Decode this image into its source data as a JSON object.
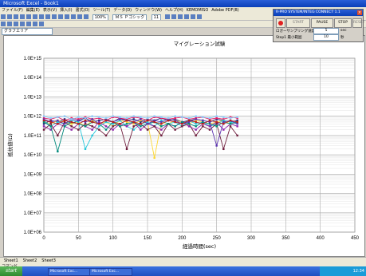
{
  "window": {
    "title": "Microsoft Excel - Book1"
  },
  "menu": [
    "ファイル(F)",
    "編集(E)",
    "表示(V)",
    "挿入(I)",
    "書式(O)",
    "ツール(T)",
    "データ(D)",
    "ウィンドウ(W)",
    "ヘルプ(H)",
    "KEMOMISO",
    "Adobe PDF(B)"
  ],
  "toolbar": {
    "zoom": "100%",
    "font": "ＭＳ Ｐゴシック",
    "font_size": "11"
  },
  "namebox": "グラフエリア",
  "control_panel": {
    "title": "R-PRO SYSTEM/INTEG CONNECT 1.1",
    "close_label": "×",
    "start_label": "START",
    "pause_label": "PAUSE",
    "stop_label": "STOP",
    "fn_label": "RESET",
    "sampling_label": "ロガーサンプリング速度",
    "sampling_value": "5",
    "sampling_unit": "sec",
    "step_label": "Step1 最小範囲",
    "step_value": "10",
    "step_unit": "秒"
  },
  "sheet_tabs": [
    "Sheet1",
    "Sheet2",
    "Sheet3"
  ],
  "status": "コマンド",
  "taskbar": {
    "start": "start",
    "tasks": [
      "Microsoft Exc...",
      "Microsoft Exc..."
    ],
    "clock": "12:34"
  },
  "chart_data": {
    "type": "line",
    "title": "マイグレーション試験",
    "xlabel": "経過時間(sec)",
    "ylabel": "抵抗値(Ω)",
    "xlim": [
      0,
      450
    ],
    "x_ticks": [
      0,
      50,
      100,
      150,
      200,
      250,
      300,
      350,
      400,
      450
    ],
    "ylim_exponent": [
      6,
      15
    ],
    "y_scale": "log",
    "y_ticks": [
      "1.0E+06",
      "1.0E+07",
      "1.0E+08",
      "1.0E+09",
      "1.0E+10",
      "1.0E+11",
      "1.0E+12",
      "1.0E+13",
      "1.0E+14",
      "1.0E+15"
    ],
    "grid": true,
    "x": [
      0,
      10,
      20,
      30,
      40,
      50,
      60,
      70,
      80,
      90,
      100,
      110,
      120,
      130,
      140,
      150,
      160,
      170,
      180,
      190,
      200,
      210,
      220,
      230,
      240,
      250,
      260,
      270,
      280
    ],
    "series": [
      {
        "color": "#1a237e",
        "values": [
          400000000000.0,
          600000000000.0,
          500000000000.0,
          700000000000.0,
          400000000000.0,
          600000000000.0,
          800000000000.0,
          500000000000.0,
          600000000000.0,
          700000000000.0,
          500000000000.0,
          800000000000.0,
          600000000000.0,
          700000000000.0,
          500000000000.0,
          700000000000.0,
          600000000000.0,
          800000000000.0,
          600000000000.0,
          700000000000.0,
          500000000000.0,
          600000000000.0,
          700000000000.0,
          600000000000.0,
          500000000000.0,
          700000000000.0,
          600000000000.0,
          500000000000.0,
          600000000000.0
        ]
      },
      {
        "color": "#e91e63",
        "values": [
          800000000000.0,
          700000000000.0,
          900000000000.0,
          600000000000.0,
          800000000000.0,
          700000000000.0,
          900000000000.0,
          700000000000.0,
          800000000000.0,
          600000000000.0,
          900000000000.0,
          800000000000.0,
          700000000000.0,
          900000000000.0,
          800000000000.0,
          600000000000.0,
          900000000000.0,
          800000000000.0,
          700000000000.0,
          800000000000.0,
          900000000000.0,
          700000000000.0,
          800000000000.0,
          900000000000.0,
          700000000000.0,
          800000000000.0,
          700000000000.0,
          900000000000.0,
          800000000000.0
        ]
      },
      {
        "color": "#fdd835",
        "values": [
          500000000000.0,
          400000000000.0,
          600000000000.0,
          500000000000.0,
          400000000000.0,
          500000000000.0,
          300000000000.0,
          600000000000.0,
          400000000000.0,
          500000000000.0,
          300000000000.0,
          600000000000.0,
          500000000000.0,
          400000000000.0,
          600000000000.0,
          500000000000.0,
          7000000000.0,
          500000000000.0,
          400000000000.0,
          600000000000.0,
          500000000000.0,
          400000000000.0,
          600000000000.0,
          500000000000.0,
          400000000000.0,
          500000000000.0,
          600000000000.0,
          400000000000.0,
          500000000000.0
        ]
      },
      {
        "color": "#26c6da",
        "values": [
          600000000000.0,
          300000000000.0,
          500000000000.0,
          400000000000.0,
          600000000000.0,
          500000000000.0,
          20000000000.0,
          100000000000.0,
          300000000000.0,
          500000000000.0,
          400000000000.0,
          600000000000.0,
          300000000000.0,
          200000000000.0,
          400000000000.0,
          500000000000.0,
          300000000000.0,
          600000000000.0,
          400000000000.0,
          500000000000.0,
          300000000000.0,
          600000000000.0,
          400000000000.0,
          500000000000.0,
          300000000000.0,
          400000000000.0,
          600000000000.0,
          500000000000.0,
          400000000000.0
        ]
      },
      {
        "color": "#8e24aa",
        "values": [
          300000000000.0,
          200000000000.0,
          400000000000.0,
          300000000000.0,
          200000000000.0,
          400000000000.0,
          300000000000.0,
          200000000000.0,
          500000000000.0,
          300000000000.0,
          200000000000.0,
          400000000000.0,
          300000000000.0,
          500000000000.0,
          200000000000.0,
          400000000000.0,
          300000000000.0,
          200000000000.0,
          400000000000.0,
          300000000000.0,
          500000000000.0,
          300000000000.0,
          200000000000.0,
          400000000000.0,
          300000000000.0,
          500000000000.0,
          200000000000.0,
          400000000000.0,
          300000000000.0
        ]
      },
      {
        "color": "#6d1b3b",
        "values": [
          200000000000.0,
          400000000000.0,
          100000000000.0,
          500000000000.0,
          300000000000.0,
          200000000000.0,
          400000000000.0,
          300000000000.0,
          200000000000.0,
          100000000000.0,
          300000000000.0,
          400000000000.0,
          20000000000.0,
          300000000000.0,
          400000000000.0,
          200000000000.0,
          300000000000.0,
          100000000000.0,
          400000000000.0,
          200000000000.0,
          300000000000.0,
          400000000000.0,
          100000000000.0,
          300000000000.0,
          200000000000.0,
          400000000000.0,
          20000000000.0,
          300000000000.0,
          100000000000.0
        ]
      },
      {
        "color": "#00897b",
        "values": [
          500000000000.0,
          300000000000.0,
          15000000000.0,
          300000000000.0,
          500000000000.0,
          400000000000.0,
          300000000000.0,
          500000000000.0,
          400000000000.0,
          200000000000.0,
          500000000000.0,
          300000000000.0,
          400000000000.0,
          500000000000.0,
          300000000000.0,
          400000000000.0,
          500000000000.0,
          300000000000.0,
          400000000000.0,
          300000000000.0,
          500000000000.0,
          400000000000.0,
          300000000000.0,
          500000000000.0,
          400000000000.0,
          300000000000.0,
          500000000000.0,
          400000000000.0,
          500000000000.0
        ]
      },
      {
        "color": "#5e35b1",
        "values": [
          700000000000.0,
          500000000000.0,
          600000000000.0,
          400000000000.0,
          700000000000.0,
          600000000000.0,
          500000000000.0,
          700000000000.0,
          400000000000.0,
          600000000000.0,
          500000000000.0,
          700000000000.0,
          600000000000.0,
          500000000000.0,
          700000000000.0,
          400000000000.0,
          600000000000.0,
          500000000000.0,
          700000000000.0,
          600000000000.0,
          400000000000.0,
          500000000000.0,
          700000000000.0,
          600000000000.0,
          500000000000.0,
          30000000000.0,
          500000000000.0,
          600000000000.0,
          400000000000.0
        ]
      },
      {
        "color": "#90caf9",
        "values": [
          1000000000000.0,
          800000000000.0,
          900000000000.0,
          1000000000000.0,
          700000000000.0,
          900000000000.0,
          800000000000.0,
          1000000000000.0,
          900000000000.0,
          800000000000.0,
          1000000000000.0,
          900000000000.0,
          800000000000.0,
          1000000000000.0,
          900000000000.0,
          800000000000.0,
          1000000000000.0,
          900000000000.0,
          800000000000.0,
          1000000000000.0,
          900000000000.0,
          800000000000.0,
          1000000000000.0,
          900000000000.0,
          800000000000.0,
          1000000000000.0,
          900000000000.0,
          800000000000.0,
          900000000000.0
        ]
      },
      {
        "color": "#b71c1c",
        "values": [
          600000000000.0,
          500000000000.0,
          400000000000.0,
          600000000000.0,
          500000000000.0,
          400000000000.0,
          600000000000.0,
          500000000000.0,
          400000000000.0,
          600000000000.0,
          500000000000.0,
          400000000000.0,
          600000000000.0,
          500000000000.0,
          400000000000.0,
          600000000000.0,
          500000000000.0,
          400000000000.0,
          600000000000.0,
          500000000000.0,
          400000000000.0,
          600000000000.0,
          500000000000.0,
          400000000000.0,
          600000000000.0,
          500000000000.0,
          400000000000.0,
          600000000000.0,
          500000000000.0
        ]
      }
    ]
  }
}
